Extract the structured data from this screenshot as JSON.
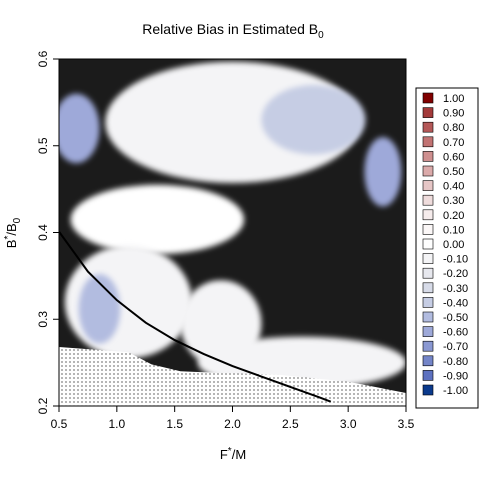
{
  "chart_data": {
    "type": "heatmap",
    "title": "Relative Bias in Estimated B",
    "title_subscript": "0",
    "xlabel": "F",
    "xlabel_superscript": "*",
    "xlabel_suffix": "/M",
    "ylabel": "B",
    "ylabel_superscript": "*",
    "ylabel_suffix": "/B",
    "ylabel_subscript": "0",
    "xlim": [
      0.5,
      3.5
    ],
    "ylim": [
      0.2,
      0.6
    ],
    "x_ticks": [
      "0.5",
      "1.0",
      "1.5",
      "2.0",
      "2.5",
      "3.0",
      "3.5"
    ],
    "y_ticks": [
      "0.2",
      "0.3",
      "0.4",
      "0.5",
      "0.6"
    ],
    "background_color": "#1b1b1b",
    "legend_position": "right",
    "legend": {
      "labels": [
        "1.00",
        "0.90",
        "0.80",
        "0.70",
        "0.60",
        "0.50",
        "0.40",
        "0.30",
        "0.20",
        "0.10",
        "0.00",
        "-0.10",
        "-0.20",
        "-0.30",
        "-0.40",
        "-0.50",
        "-0.60",
        "-0.70",
        "-0.80",
        "-0.90",
        "-1.00"
      ],
      "colors": [
        "#800000",
        "#a33a3a",
        "#b45858",
        "#c27373",
        "#cf9090",
        "#dbaaaa",
        "#e6c6c6",
        "#efdcdc",
        "#f6ecec",
        "#fbf7f7",
        "#ffffff",
        "#f4f4f6",
        "#e7e8ee",
        "#d7dbe8",
        "#c6cde4",
        "#b2bce0",
        "#9ea9d9",
        "#8a98d2",
        "#7485c8",
        "#5d71c0",
        "#0b3a8c"
      ]
    },
    "curve": {
      "x": [
        0.5,
        0.75,
        1.0,
        1.25,
        1.5,
        1.75,
        2.0,
        2.25,
        2.5,
        2.75,
        2.85
      ],
      "y": [
        0.401,
        0.355,
        0.322,
        0.296,
        0.276,
        0.26,
        0.246,
        0.234,
        0.222,
        0.21,
        0.205
      ]
    },
    "dotted_region": {
      "x": [
        0.5,
        1.1,
        1.3,
        1.55,
        1.9,
        2.4,
        3.0,
        3.5,
        3.5,
        0.5
      ],
      "y": [
        0.268,
        0.262,
        0.248,
        0.24,
        0.238,
        0.236,
        0.228,
        0.215,
        0.2,
        0.2
      ]
    },
    "blobs": [
      {
        "cx": 2.0,
        "cy": 0.527,
        "rx": 1.1,
        "ry": 0.07,
        "level": -0.1
      },
      {
        "cx": 2.7,
        "cy": 0.53,
        "rx": 0.45,
        "ry": 0.04,
        "level": -0.4
      },
      {
        "cx": 0.65,
        "cy": 0.52,
        "rx": 0.2,
        "ry": 0.04,
        "level": -0.6
      },
      {
        "cx": 3.3,
        "cy": 0.47,
        "rx": 0.16,
        "ry": 0.04,
        "level": -0.6
      },
      {
        "cx": 1.35,
        "cy": 0.415,
        "rx": 0.75,
        "ry": 0.04,
        "level": -0.05
      },
      {
        "cx": 1.1,
        "cy": 0.32,
        "rx": 0.55,
        "ry": 0.065,
        "level": -0.1
      },
      {
        "cx": 0.85,
        "cy": 0.312,
        "rx": 0.18,
        "ry": 0.04,
        "level": -0.5
      },
      {
        "cx": 1.9,
        "cy": 0.295,
        "rx": 0.35,
        "ry": 0.05,
        "level": -0.15
      },
      {
        "cx": 2.6,
        "cy": 0.25,
        "rx": 0.9,
        "ry": 0.03,
        "level": -0.1
      }
    ]
  }
}
